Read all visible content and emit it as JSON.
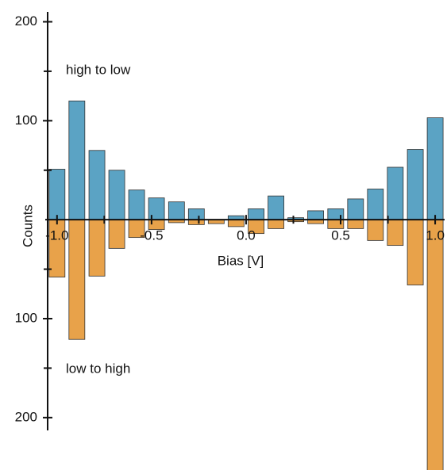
{
  "chart_data": {
    "type": "bar",
    "xlabel": "Bias [V]",
    "ylabel": "Counts",
    "x": [
      -1.0,
      -0.895,
      -0.789,
      -0.684,
      -0.579,
      -0.474,
      -0.368,
      -0.263,
      -0.158,
      -0.053,
      0.053,
      0.158,
      0.263,
      0.368,
      0.474,
      0.579,
      0.684,
      0.789,
      0.895,
      1.0
    ],
    "series": [
      {
        "name": "high to low",
        "color": "#5ba3c4",
        "values": [
          51,
          120,
          70,
          50,
          30,
          22,
          18,
          11,
          0,
          4,
          11,
          24,
          2,
          9,
          11,
          21,
          31,
          53,
          71,
          103
        ]
      },
      {
        "name": "low to high",
        "color": "#e8a24a",
        "values": [
          -58,
          -121,
          -57,
          -29,
          -18,
          -10,
          -3,
          -5,
          -4,
          -7,
          -14,
          -9,
          -2,
          -4,
          -9,
          -9,
          -21,
          -26,
          -66,
          -260
        ]
      }
    ],
    "xlim": [
      -1.1,
      1.05
    ],
    "xticks": [
      {
        "value": -1.0,
        "label": "-1.0"
      },
      {
        "value": -0.5,
        "label": "-0.5"
      },
      {
        "value": 0.0,
        "label": "0.0"
      },
      {
        "value": 0.5,
        "label": "0.5"
      },
      {
        "value": 1.0,
        "label": "1.0"
      }
    ],
    "xminor": [
      -0.75,
      -0.25,
      0.25,
      0.75
    ],
    "ylim": [
      -253,
      210
    ],
    "yticks": [
      200,
      100,
      {
        "value": -100,
        "label": "100"
      },
      {
        "value": -200,
        "label": "200"
      }
    ],
    "yminor": [
      150,
      50,
      -50,
      -150
    ],
    "grid": false
  }
}
